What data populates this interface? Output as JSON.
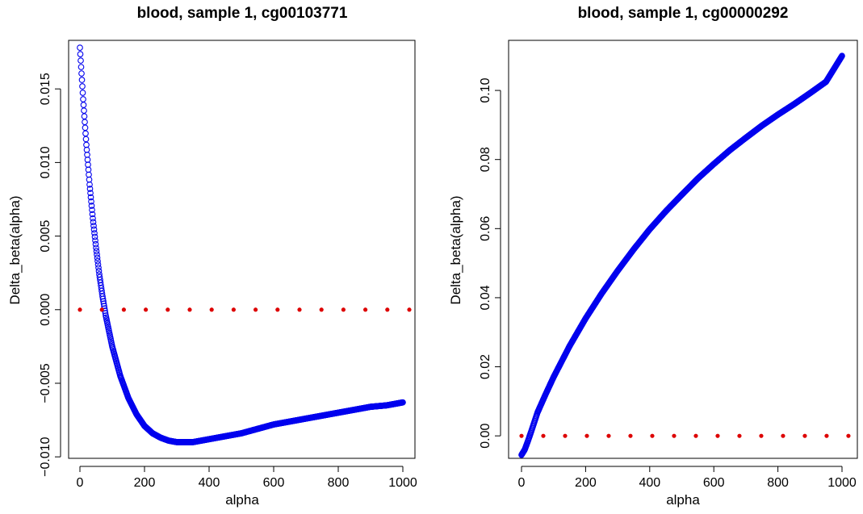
{
  "chart_data": [
    {
      "type": "scatter",
      "title": "blood, sample 1, cg00103771",
      "xlabel": "alpha",
      "ylabel": "Delta_beta(alpha)",
      "xlim": [
        0,
        1000
      ],
      "ylim": [
        -0.0101,
        0.0183
      ],
      "xticks": [
        0,
        200,
        400,
        600,
        800,
        1000
      ],
      "xtick_labels": [
        "0",
        "200",
        "400",
        "600",
        "800",
        "1000"
      ],
      "yticks": [
        -0.01,
        -0.005,
        0.0,
        0.005,
        0.01,
        0.015
      ],
      "ytick_labels": [
        "−0.010",
        "−0.005",
        "0.000",
        "0.005",
        "0.010",
        "0.015"
      ],
      "grid": false,
      "series": [
        {
          "color": "#0000ee",
          "marker": "open-circle",
          "x": [
            0,
            10,
            20,
            30,
            40,
            50,
            60,
            70,
            80,
            100,
            125,
            150,
            175,
            200,
            225,
            250,
            275,
            300,
            325,
            350,
            375,
            400,
            450,
            500,
            550,
            600,
            650,
            700,
            750,
            800,
            850,
            900,
            950,
            1000
          ],
          "y": [
            0.0178,
            0.0143,
            0.0112,
            0.0085,
            0.0062,
            0.0042,
            0.0024,
            0.0009,
            -0.0004,
            -0.0025,
            -0.0045,
            -0.006,
            -0.0071,
            -0.0079,
            -0.0084,
            -0.0087,
            -0.0089,
            -0.009,
            -0.009,
            -0.009,
            -0.0089,
            -0.0088,
            -0.0086,
            -0.0084,
            -0.0081,
            -0.0078,
            -0.0076,
            -0.0074,
            -0.0072,
            -0.007,
            -0.0068,
            -0.0066,
            -0.0065,
            -0.0063
          ]
        },
        {
          "color": "#dd0000",
          "marker": "dot",
          "x": [
            0,
            68,
            136,
            204,
            272,
            340,
            408,
            476,
            544,
            612,
            680,
            748,
            816,
            884,
            952,
            1020
          ],
          "y": [
            0,
            0,
            0,
            0,
            0,
            0,
            0,
            0,
            0,
            0,
            0,
            0,
            0,
            0,
            0,
            0
          ]
        }
      ]
    },
    {
      "type": "scatter",
      "title": "blood, sample 1, cg00000292",
      "xlabel": "alpha",
      "ylabel": "Delta_beta(alpha)",
      "xlim": [
        0,
        1000
      ],
      "ylim": [
        -0.0065,
        0.1145
      ],
      "xticks": [
        0,
        200,
        400,
        600,
        800,
        1000
      ],
      "xtick_labels": [
        "0",
        "200",
        "400",
        "600",
        "800",
        "1000"
      ],
      "yticks": [
        0.0,
        0.02,
        0.04,
        0.06,
        0.08,
        0.1
      ],
      "ytick_labels": [
        "0.00",
        "0.02",
        "0.04",
        "0.06",
        "0.08",
        "0.10"
      ],
      "grid": false,
      "series": [
        {
          "color": "#0000ee",
          "marker": "open-circle",
          "x": [
            0,
            10,
            20,
            30,
            40,
            50,
            75,
            100,
            150,
            200,
            250,
            300,
            350,
            400,
            450,
            500,
            550,
            600,
            650,
            700,
            750,
            800,
            850,
            900,
            950,
            1000
          ],
          "y": [
            -0.0055,
            -0.004,
            -0.0015,
            0.0012,
            0.004,
            0.0068,
            0.012,
            0.017,
            0.026,
            0.034,
            0.0412,
            0.0478,
            0.054,
            0.0598,
            0.065,
            0.0698,
            0.0745,
            0.0787,
            0.0827,
            0.0863,
            0.0898,
            0.093,
            0.096,
            0.0992,
            0.1025,
            0.11
          ]
        },
        {
          "color": "#dd0000",
          "marker": "dot",
          "x": [
            0,
            68,
            136,
            204,
            272,
            340,
            408,
            476,
            544,
            612,
            680,
            748,
            816,
            884,
            952,
            1020
          ],
          "y": [
            0,
            0,
            0,
            0,
            0,
            0,
            0,
            0,
            0,
            0,
            0,
            0,
            0,
            0,
            0,
            0
          ]
        }
      ]
    }
  ]
}
